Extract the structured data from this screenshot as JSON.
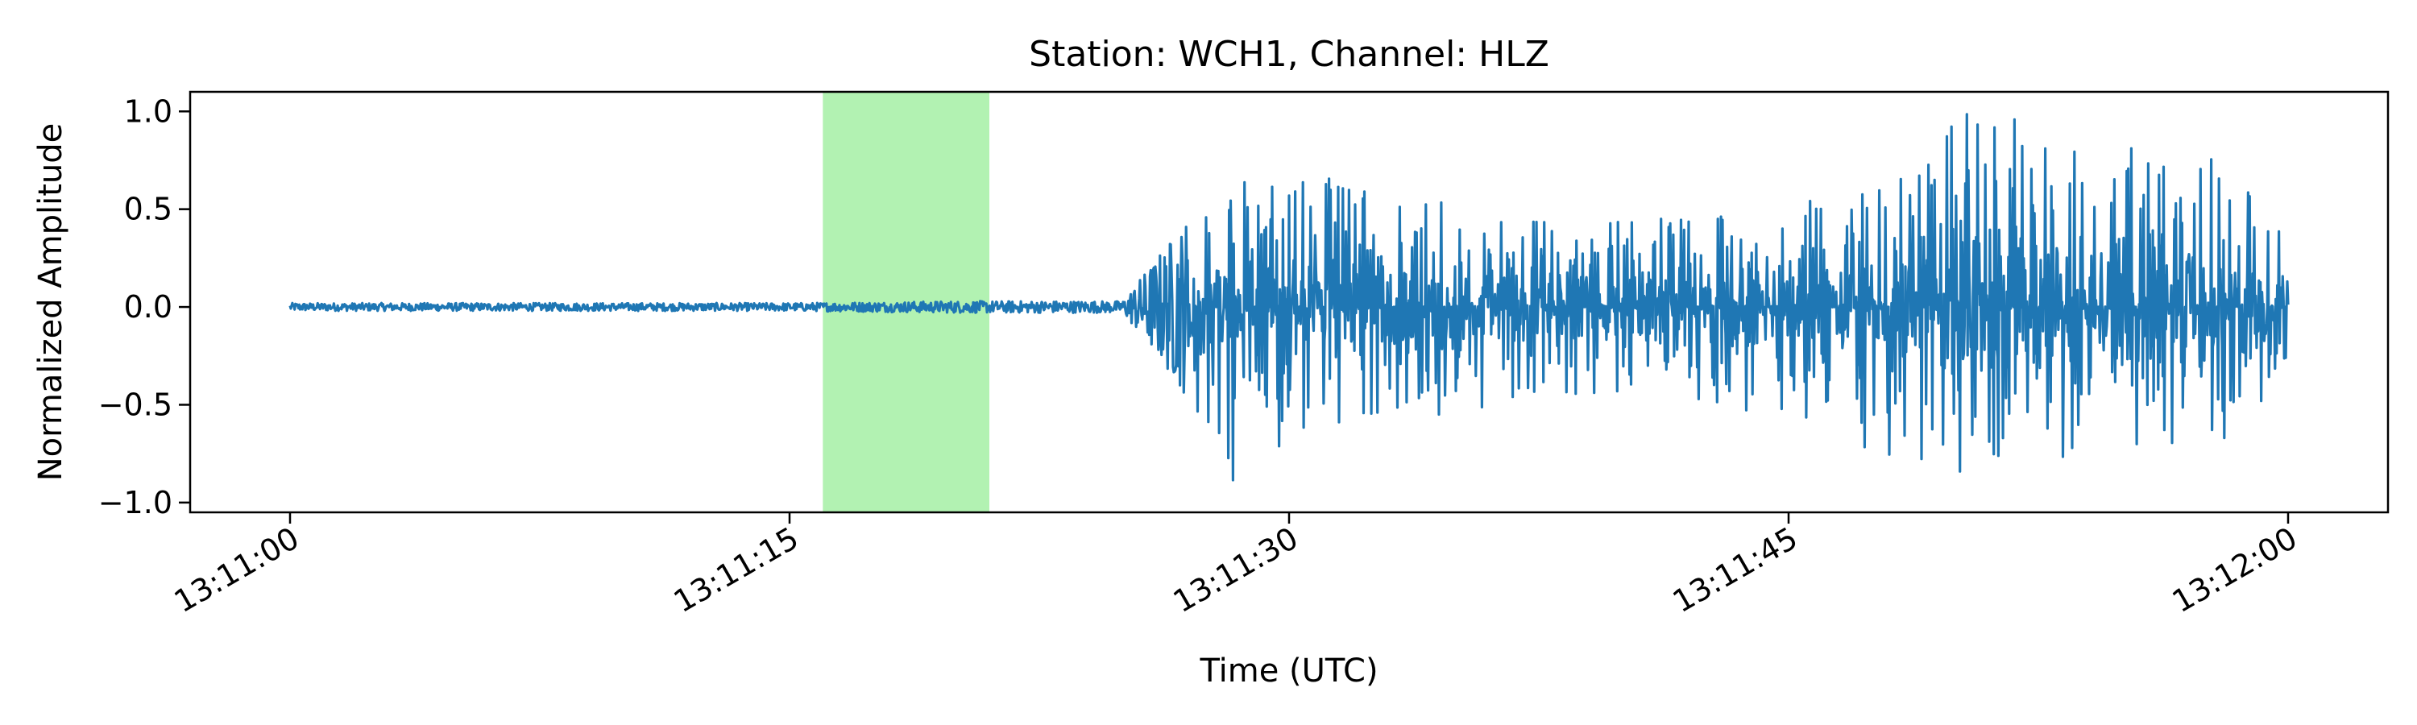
{
  "chart_data": {
    "type": "line",
    "title": "Station: WCH1, Channel: HLZ",
    "xlabel": "Time (UTC)",
    "ylabel": "Normalized Amplitude",
    "x_range": [
      "13:11:00",
      "13:12:00"
    ],
    "xlim": [
      "13:10:57",
      "13:12:03"
    ],
    "ylim": [
      -1.05,
      1.1
    ],
    "x_ticks": [
      "13:11:00",
      "13:11:15",
      "13:11:30",
      "13:11:45",
      "13:12:00"
    ],
    "y_ticks": [
      1.0,
      0.5,
      0.0,
      -0.5,
      -1.0
    ],
    "y_tick_labels": [
      "1.0",
      "0.5",
      "0.0",
      "−0.5",
      "−1.0"
    ],
    "grid": false,
    "highlight_window": {
      "start": "13:11:16",
      "end": "13:11:21",
      "color": "#b2f2b2"
    },
    "series": [
      {
        "color": "#1f77b4",
        "signal_onset": "13:11:27",
        "peak_amplitude": 1.0,
        "min_amplitude": -0.93,
        "x": [
          "13:11:00",
          "13:11:05",
          "13:11:10",
          "13:11:15",
          "13:11:20",
          "13:11:25",
          "13:11:27",
          "13:11:28",
          "13:11:30",
          "13:11:35",
          "13:11:40",
          "13:11:45",
          "13:11:48",
          "13:11:50",
          "13:11:53",
          "13:11:55",
          "13:11:58",
          "13:12:00"
        ],
        "envelope_upper": [
          0.02,
          0.02,
          0.02,
          0.02,
          0.03,
          0.03,
          0.48,
          0.62,
          0.72,
          0.52,
          0.45,
          0.55,
          0.68,
          1.0,
          0.95,
          0.85,
          0.75,
          0.5
        ],
        "envelope_lower": [
          -0.02,
          -0.02,
          -0.02,
          -0.02,
          -0.03,
          -0.03,
          -0.45,
          -0.93,
          -0.7,
          -0.55,
          -0.45,
          -0.6,
          -0.82,
          -0.88,
          -0.93,
          -0.8,
          -0.68,
          -0.45
        ]
      }
    ]
  }
}
